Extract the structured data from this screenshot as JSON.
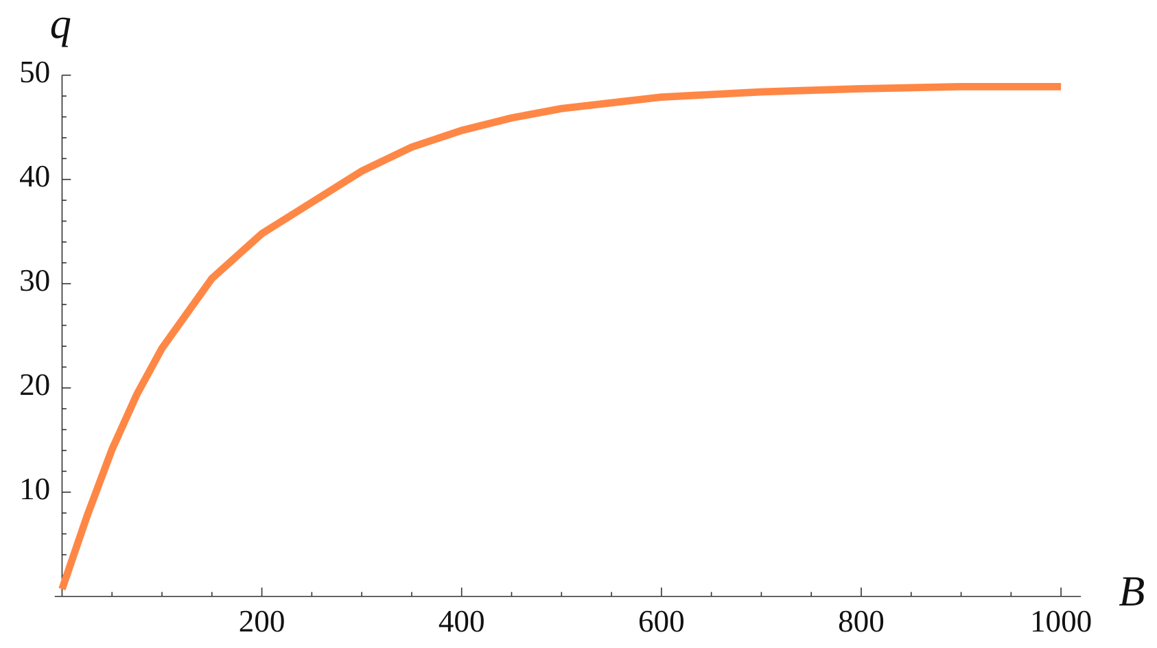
{
  "chart_data": {
    "type": "line",
    "x_label": "B",
    "y_label": "q",
    "x": [
      0,
      25,
      50,
      75,
      100,
      150,
      200,
      250,
      300,
      350,
      400,
      450,
      500,
      600,
      700,
      800,
      900,
      1000
    ],
    "series": [
      {
        "color": "#ff8746",
        "values": [
          0.7,
          7.7,
          14.1,
          19.4,
          23.8,
          30.5,
          34.8,
          37.8,
          40.8,
          43.1,
          44.7,
          45.9,
          46.8,
          47.9,
          48.4,
          48.7,
          48.9,
          48.9
        ]
      }
    ],
    "xlim": [
      0,
      1000
    ],
    "ylim": [
      0,
      50
    ],
    "xticks": [
      200,
      400,
      600,
      800,
      1000
    ],
    "yticks": [
      10,
      20,
      30,
      40,
      50
    ]
  }
}
